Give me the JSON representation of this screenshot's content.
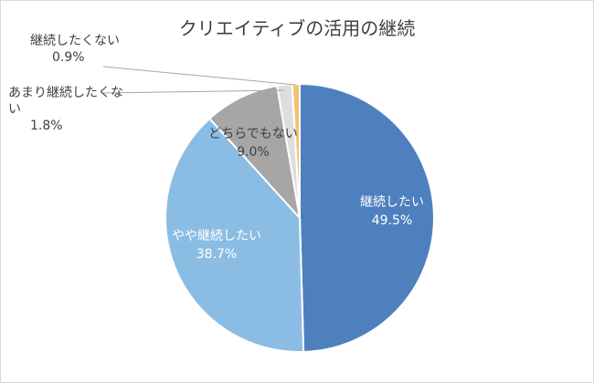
{
  "chart_data": {
    "type": "pie",
    "title": "クリエイティブの活用の継続",
    "slices": [
      {
        "label": "継続したい",
        "value": 49.5,
        "value_text": "49.5%",
        "color": "#4e80bd"
      },
      {
        "label": "やや継続したい",
        "value": 38.7,
        "value_text": "38.7%",
        "color": "#8bbde4"
      },
      {
        "label": "どちらでもない",
        "value": 9.0,
        "value_text": "9.0%",
        "color": "#a6a6a6"
      },
      {
        "label": "あまり継続したくない",
        "value": 1.8,
        "value_text": "1.8%",
        "color": "#dedede"
      },
      {
        "label": "継続したくない",
        "value": 0.9,
        "value_text": "0.9%",
        "color": "#f2c46f"
      }
    ]
  }
}
